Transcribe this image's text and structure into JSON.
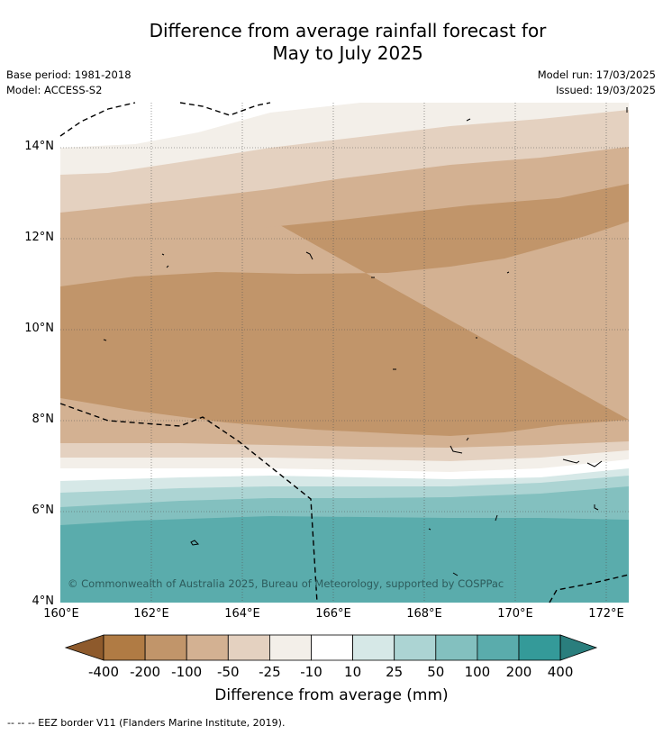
{
  "title_line1": "Difference from average rainfall forecast for",
  "title_line2": "May to July 2025",
  "base_period": "Base period: 1981-2018",
  "model": "Model: ACCESS-S2",
  "model_run": "Model run: 17/03/2025",
  "issued": "Issued: 19/03/2025",
  "copyright": "© Commonwealth of Australia 2025, Bureau of Meteorology, supported by COSPPac",
  "map": {
    "lon_range": [
      160,
      172.5
    ],
    "lat_range": [
      4,
      15
    ],
    "x_ticks": [
      "160°E",
      "162°E",
      "164°E",
      "166°E",
      "168°E",
      "170°E",
      "172°E"
    ],
    "y_ticks": [
      "14°N",
      "12°N",
      "10°N",
      "8°N",
      "6°N",
      "4°N"
    ],
    "gridlines": true,
    "eez_border": "dashed black"
  },
  "legend": {
    "labels": [
      "-400",
      "-200",
      "-100",
      "-50",
      "-25",
      "-10",
      "10",
      "25",
      "50",
      "100",
      "200",
      "400"
    ],
    "colors": [
      "#8e5a2c",
      "#b07b44",
      "#c1956a",
      "#d3b192",
      "#e4d1c0",
      "#f3efe9",
      "#ffffff",
      "#d6e8e7",
      "#acd4d3",
      "#83c0bf",
      "#5aacac",
      "#349a99",
      "#2a7e7d"
    ],
    "label": "Difference from average (mm)"
  },
  "eez_legend": "--  --  -- EEZ border V11 (Flanders Marine Institute, 2019)."
}
